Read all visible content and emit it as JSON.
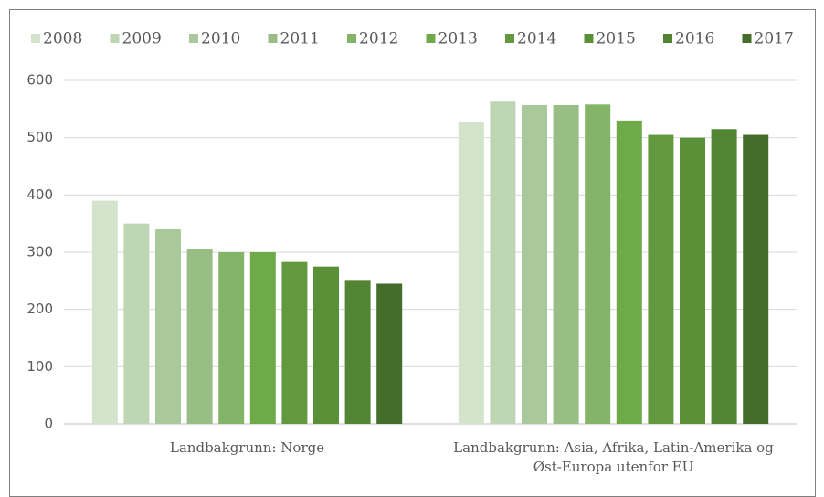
{
  "chart_data": {
    "type": "bar",
    "categories": [
      "Landbakgrunn: Norge",
      "Landbakgrunn: Asia, Afrika, Latin-Amerika og Øst-Europa utenfor EU"
    ],
    "series": [
      {
        "name": "2008",
        "color": "#d3e3cc",
        "values": [
          390,
          528
        ]
      },
      {
        "name": "2009",
        "color": "#bed6b3",
        "values": [
          350,
          563
        ]
      },
      {
        "name": "2010",
        "color": "#a9c99a",
        "values": [
          340,
          557
        ]
      },
      {
        "name": "2011",
        "color": "#98be86",
        "values": [
          305,
          557
        ]
      },
      {
        "name": "2012",
        "color": "#83b468",
        "values": [
          300,
          558
        ]
      },
      {
        "name": "2013",
        "color": "#6eaa48",
        "values": [
          300,
          530
        ]
      },
      {
        "name": "2014",
        "color": "#62993f",
        "values": [
          283,
          505
        ]
      },
      {
        "name": "2015",
        "color": "#5a9138",
        "values": [
          275,
          500
        ]
      },
      {
        "name": "2016",
        "color": "#518533",
        "values": [
          250,
          515
        ]
      },
      {
        "name": "2017",
        "color": "#446d2b",
        "values": [
          245,
          505
        ]
      }
    ],
    "ylim": [
      0,
      600
    ],
    "yticks": [
      0,
      100,
      200,
      300,
      400,
      500,
      600
    ],
    "grid": true,
    "legend": "top"
  }
}
